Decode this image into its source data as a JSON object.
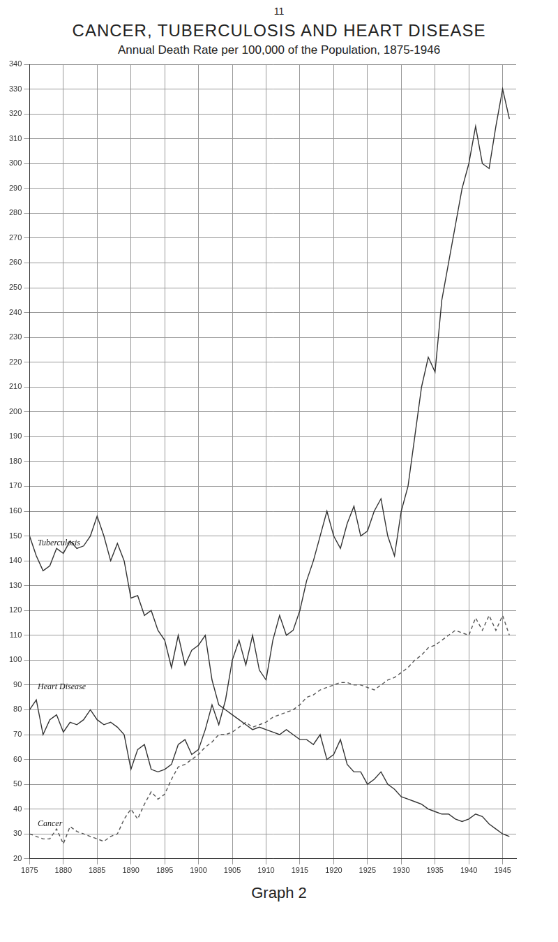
{
  "page_number": "11",
  "caption": "Graph 2",
  "chart_data": {
    "type": "line",
    "title": "CANCER, TUBERCULOSIS AND HEART DISEASE",
    "subtitle": "Annual Death Rate per 100,000 of the Population, 1875-1946",
    "x": [
      1875,
      1876,
      1877,
      1878,
      1879,
      1880,
      1881,
      1882,
      1883,
      1884,
      1885,
      1886,
      1887,
      1888,
      1889,
      1890,
      1891,
      1892,
      1893,
      1894,
      1895,
      1896,
      1897,
      1898,
      1899,
      1900,
      1901,
      1902,
      1903,
      1904,
      1905,
      1906,
      1907,
      1908,
      1909,
      1910,
      1911,
      1912,
      1913,
      1914,
      1915,
      1916,
      1917,
      1918,
      1919,
      1920,
      1921,
      1922,
      1923,
      1924,
      1925,
      1926,
      1927,
      1928,
      1929,
      1930,
      1931,
      1932,
      1933,
      1934,
      1935,
      1936,
      1937,
      1938,
      1939,
      1940,
      1941,
      1942,
      1943,
      1944,
      1945,
      1946
    ],
    "series": [
      {
        "name": "Tuberculosis",
        "color": "#333333",
        "line_style": "solid",
        "values": [
          150,
          142,
          136,
          138,
          145,
          143,
          148,
          145,
          146,
          150,
          158,
          150,
          140,
          147,
          140,
          125,
          126,
          118,
          120,
          112,
          108,
          97,
          110,
          98,
          104,
          106,
          110,
          92,
          82,
          80,
          78,
          76,
          74,
          72,
          73,
          72,
          71,
          70,
          72,
          70,
          68,
          68,
          66,
          70,
          60,
          62,
          68,
          58,
          55,
          55,
          50,
          52,
          55,
          50,
          48,
          45,
          44,
          43,
          42,
          40,
          39,
          38,
          38,
          36,
          35,
          36,
          38,
          37,
          34,
          32,
          30,
          29
        ]
      },
      {
        "name": "Heart Disease",
        "color": "#333333",
        "line_style": "solid",
        "values": [
          80,
          84,
          70,
          76,
          78,
          71,
          75,
          74,
          76,
          80,
          76,
          74,
          75,
          73,
          70,
          56,
          64,
          66,
          56,
          55,
          56,
          58,
          66,
          68,
          62,
          64,
          72,
          82,
          74,
          84,
          100,
          108,
          98,
          110,
          96,
          92,
          108,
          118,
          110,
          112,
          120,
          132,
          140,
          150,
          160,
          150,
          145,
          155,
          162,
          150,
          152,
          160,
          165,
          150,
          142,
          160,
          170,
          190,
          210,
          222,
          216,
          245,
          260,
          275,
          290,
          300,
          315,
          300,
          298,
          315,
          330,
          318
        ]
      },
      {
        "name": "Cancer",
        "color": "#555555",
        "line_style": "dashed",
        "values": [
          30,
          29,
          28,
          28,
          32,
          26,
          33,
          31,
          30,
          29,
          28,
          27,
          29,
          30,
          36,
          40,
          36,
          42,
          47,
          44,
          46,
          52,
          57,
          58,
          60,
          62,
          65,
          67,
          70,
          70,
          71,
          73,
          75,
          73,
          74,
          75,
          77,
          78,
          79,
          80,
          82,
          85,
          86,
          88,
          89,
          90,
          91,
          91,
          90,
          90,
          89,
          88,
          90,
          92,
          93,
          95,
          97,
          100,
          102,
          105,
          106,
          108,
          110,
          112,
          111,
          110,
          117,
          112,
          118,
          112,
          118,
          110
        ]
      }
    ],
    "xlim": [
      1875,
      1947
    ],
    "xticks": [
      1875,
      1880,
      1885,
      1890,
      1895,
      1900,
      1905,
      1910,
      1915,
      1920,
      1925,
      1930,
      1935,
      1940,
      1945
    ],
    "ylim": [
      20,
      340
    ],
    "yticks": [
      20,
      30,
      40,
      50,
      60,
      70,
      80,
      90,
      100,
      110,
      120,
      130,
      140,
      150,
      160,
      170,
      180,
      190,
      200,
      210,
      220,
      230,
      240,
      250,
      260,
      270,
      280,
      290,
      300,
      310,
      320,
      330,
      340
    ],
    "grid": true
  }
}
